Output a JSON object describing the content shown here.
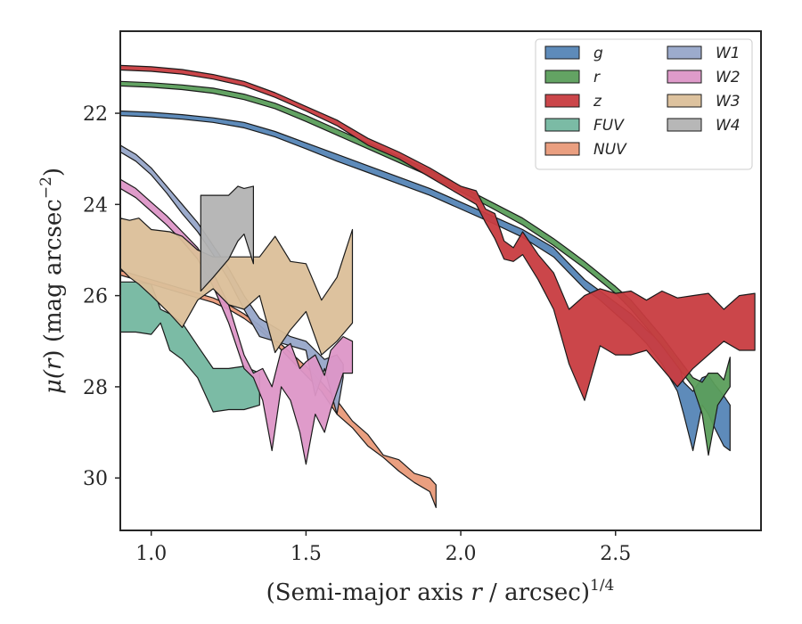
{
  "chart_data": {
    "type": "area",
    "xlabel": "(Semi-major axis r / arcsec)",
    "xlabel_prefix": "(Semi-major axis ",
    "xlabel_var": "r",
    "xlabel_suffix": " / arcsec)",
    "xlabel_sup": "1/4",
    "ylabel": "μ(r) (mag arcsec⁻²)",
    "ylabel_prefix": "μ(",
    "ylabel_var": "r",
    "ylabel_mid": ") (mag arcsec",
    "ylabel_sup": "−2",
    "ylabel_end": ")",
    "xlim": [
      0.9,
      2.97
    ],
    "ylim": [
      31.15,
      20.2
    ],
    "y_inverted": true,
    "x_ticks": [
      1.0,
      1.5,
      2.0,
      2.5
    ],
    "x_tick_labels": [
      "1.0",
      "1.5",
      "2.0",
      "2.5"
    ],
    "y_ticks": [
      22,
      24,
      26,
      28,
      30
    ],
    "y_tick_labels": [
      "22",
      "24",
      "26",
      "28",
      "30"
    ],
    "grid": false,
    "legend_placement": "top-right",
    "legend_columns": 2,
    "series": [
      {
        "name": "FUV",
        "color": "#6db49b",
        "alpha": 0.9,
        "x": [
          0.9,
          0.95,
          1.0,
          1.03,
          1.06,
          1.1,
          1.15,
          1.2,
          1.25,
          1.3,
          1.35
        ],
        "y_upper": [
          25.7,
          25.7,
          25.75,
          26.3,
          26.4,
          26.6,
          27.1,
          27.6,
          27.6,
          27.55,
          27.7
        ],
        "y_lower": [
          26.8,
          26.8,
          26.85,
          26.6,
          27.2,
          27.4,
          27.8,
          28.55,
          28.5,
          28.5,
          28.4
        ]
      },
      {
        "name": "NUV",
        "color": "#e99a79",
        "alpha": 0.95,
        "x": [
          0.9,
          0.95,
          1.0,
          1.05,
          1.1,
          1.15,
          1.2,
          1.25,
          1.3,
          1.35,
          1.4,
          1.45,
          1.5,
          1.55,
          1.6,
          1.65,
          1.7,
          1.75,
          1.8,
          1.85,
          1.9,
          1.92
        ],
        "y_upper": [
          25.45,
          25.55,
          25.65,
          25.75,
          25.85,
          25.95,
          26.05,
          26.2,
          26.4,
          26.65,
          26.95,
          27.25,
          27.55,
          27.9,
          28.3,
          28.75,
          29.05,
          29.5,
          29.6,
          29.9,
          30.0,
          30.15
        ],
        "y_lower": [
          25.55,
          25.65,
          25.75,
          25.85,
          25.95,
          26.05,
          26.15,
          26.3,
          26.5,
          26.75,
          27.05,
          27.4,
          27.75,
          28.1,
          28.6,
          28.9,
          29.3,
          29.55,
          29.85,
          30.1,
          30.3,
          30.65
        ]
      },
      {
        "name": "W1",
        "color": "#97a6c9",
        "alpha": 0.95,
        "x": [
          0.9,
          0.95,
          1.0,
          1.05,
          1.1,
          1.15,
          1.2,
          1.25,
          1.3,
          1.35,
          1.4,
          1.45,
          1.5,
          1.53,
          1.56,
          1.6,
          1.62
        ],
        "y_upper": [
          22.7,
          22.9,
          23.2,
          23.6,
          24.0,
          24.4,
          24.9,
          25.4,
          26.0,
          26.5,
          26.7,
          26.9,
          27.0,
          27.2,
          27.4,
          27.3,
          27.5
        ],
        "y_lower": [
          22.85,
          23.05,
          23.35,
          23.75,
          24.2,
          24.6,
          25.1,
          25.65,
          26.3,
          26.9,
          27.0,
          27.1,
          27.2,
          28.2,
          27.6,
          28.6,
          27.8
        ]
      },
      {
        "name": "W2",
        "color": "#dd96c7",
        "alpha": 0.95,
        "x": [
          0.9,
          0.95,
          1.0,
          1.05,
          1.1,
          1.15,
          1.2,
          1.25,
          1.3,
          1.33,
          1.36,
          1.39,
          1.42,
          1.45,
          1.48,
          1.5,
          1.53,
          1.56,
          1.58,
          1.62,
          1.65
        ],
        "y_upper": [
          23.45,
          23.65,
          23.95,
          24.25,
          24.6,
          24.95,
          25.5,
          26.2,
          27.3,
          27.7,
          27.6,
          28.0,
          27.2,
          27.05,
          27.6,
          27.45,
          27.3,
          27.75,
          27.2,
          26.9,
          27.0
        ],
        "y_lower": [
          23.65,
          23.85,
          24.15,
          24.45,
          24.8,
          25.2,
          25.8,
          26.6,
          27.6,
          27.8,
          28.3,
          29.4,
          28.0,
          28.3,
          29.0,
          29.7,
          28.6,
          29.0,
          28.5,
          27.7,
          27.7
        ]
      },
      {
        "name": "W3",
        "color": "#dbbf99",
        "alpha": 0.95,
        "x": [
          0.9,
          0.93,
          0.96,
          1.0,
          1.06,
          1.1,
          1.15,
          1.2,
          1.25,
          1.3,
          1.35,
          1.4,
          1.45,
          1.5,
          1.55,
          1.6,
          1.65
        ],
        "y_upper": [
          24.3,
          24.35,
          24.3,
          24.55,
          24.6,
          24.7,
          25.0,
          25.15,
          25.15,
          25.15,
          25.15,
          24.7,
          25.25,
          25.3,
          26.1,
          25.6,
          24.55
        ],
        "y_lower": [
          25.4,
          25.6,
          25.75,
          26.0,
          26.4,
          26.7,
          26.1,
          25.85,
          26.2,
          26.3,
          26.0,
          27.25,
          26.75,
          26.35,
          27.3,
          27.0,
          26.6
        ]
      },
      {
        "name": "W4",
        "color": "#b3b3b3",
        "alpha": 0.95,
        "x": [
          1.16,
          1.2,
          1.25,
          1.28,
          1.3,
          1.33
        ],
        "y_upper": [
          23.8,
          23.8,
          23.8,
          23.6,
          23.65,
          23.6
        ],
        "y_lower": [
          25.9,
          25.6,
          25.2,
          24.8,
          24.65,
          25.3
        ]
      },
      {
        "name": "g",
        "color": "#5585b6",
        "alpha": 0.95,
        "x": [
          0.9,
          1.0,
          1.1,
          1.2,
          1.3,
          1.4,
          1.5,
          1.6,
          1.7,
          1.8,
          1.9,
          2.0,
          2.1,
          2.2,
          2.3,
          2.35,
          2.4,
          2.45,
          2.5,
          2.55,
          2.6,
          2.65,
          2.7,
          2.72,
          2.75,
          2.78,
          2.8,
          2.82,
          2.85,
          2.87
        ],
        "y_upper": [
          21.95,
          21.98,
          22.03,
          22.1,
          22.2,
          22.4,
          22.65,
          22.9,
          23.15,
          23.4,
          23.65,
          23.95,
          24.25,
          24.55,
          24.95,
          25.3,
          25.65,
          25.9,
          26.15,
          26.4,
          26.75,
          27.05,
          27.4,
          27.9,
          28.1,
          27.8,
          27.75,
          27.95,
          28.2,
          28.4
        ],
        "y_lower": [
          22.05,
          22.08,
          22.13,
          22.2,
          22.32,
          22.52,
          22.78,
          23.05,
          23.3,
          23.55,
          23.8,
          24.1,
          24.4,
          24.72,
          25.15,
          25.5,
          25.85,
          26.1,
          26.4,
          26.7,
          27.05,
          27.5,
          28.1,
          28.6,
          29.4,
          28.4,
          28.6,
          28.9,
          29.3,
          29.4
        ]
      },
      {
        "name": "r",
        "color": "#5b9e5b",
        "alpha": 0.95,
        "x": [
          0.9,
          1.0,
          1.1,
          1.2,
          1.3,
          1.4,
          1.5,
          1.6,
          1.7,
          1.8,
          1.9,
          2.0,
          2.1,
          2.2,
          2.3,
          2.4,
          2.5,
          2.55,
          2.6,
          2.65,
          2.7,
          2.75,
          2.78,
          2.8,
          2.83,
          2.85,
          2.87
        ],
        "y_upper": [
          21.3,
          21.33,
          21.38,
          21.45,
          21.58,
          21.78,
          22.05,
          22.35,
          22.65,
          22.95,
          23.25,
          23.6,
          23.95,
          24.3,
          24.75,
          25.25,
          25.8,
          26.1,
          26.5,
          26.9,
          27.35,
          27.8,
          27.9,
          27.7,
          27.7,
          27.85,
          27.35
        ],
        "y_lower": [
          21.4,
          21.43,
          21.48,
          21.56,
          21.7,
          21.9,
          22.18,
          22.48,
          22.78,
          23.08,
          23.38,
          23.72,
          24.08,
          24.45,
          24.9,
          25.4,
          25.95,
          26.3,
          26.7,
          27.1,
          27.55,
          28.0,
          28.6,
          29.5,
          28.4,
          28.2,
          28.0
        ]
      },
      {
        "name": "z",
        "color": "#c83c40",
        "alpha": 0.95,
        "x": [
          0.9,
          1.0,
          1.1,
          1.2,
          1.3,
          1.4,
          1.5,
          1.6,
          1.7,
          1.8,
          1.9,
          2.0,
          2.05,
          2.08,
          2.11,
          2.14,
          2.17,
          2.2,
          2.25,
          2.3,
          2.35,
          2.4,
          2.45,
          2.5,
          2.55,
          2.6,
          2.65,
          2.7,
          2.75,
          2.8,
          2.85,
          2.9,
          2.95
        ],
        "y_upper": [
          20.95,
          20.98,
          21.04,
          21.15,
          21.3,
          21.55,
          21.85,
          22.15,
          22.55,
          22.85,
          23.2,
          23.6,
          23.7,
          24.1,
          24.2,
          24.8,
          24.95,
          24.6,
          25.1,
          25.5,
          26.3,
          26.0,
          25.85,
          25.95,
          25.9,
          26.1,
          25.9,
          26.05,
          26.0,
          25.95,
          26.3,
          26.0,
          25.95
        ],
        "y_lower": [
          21.05,
          21.08,
          21.14,
          21.25,
          21.4,
          21.65,
          21.95,
          22.27,
          22.7,
          23.0,
          23.4,
          23.8,
          24.0,
          24.4,
          24.75,
          25.2,
          25.25,
          25.1,
          25.65,
          26.3,
          27.5,
          28.3,
          27.1,
          27.3,
          27.3,
          27.2,
          27.6,
          28.0,
          27.6,
          27.3,
          27.0,
          27.2,
          27.2
        ]
      }
    ],
    "legend": {
      "column1": [
        "g",
        "r",
        "z",
        "FUV",
        "NUV"
      ],
      "column2": [
        "W1",
        "W2",
        "W3",
        "W4"
      ]
    }
  }
}
